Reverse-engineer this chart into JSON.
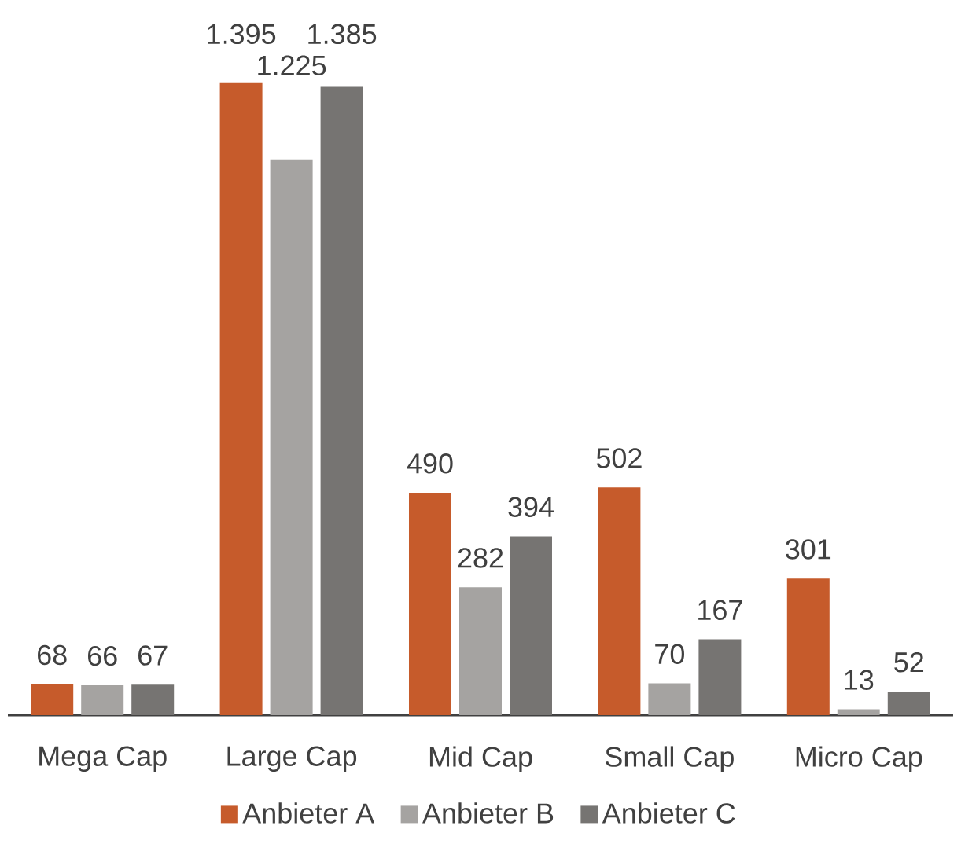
{
  "chart_data": {
    "type": "bar",
    "categories": [
      "Mega Cap",
      "Large Cap",
      "Mid Cap",
      "Small Cap",
      "Micro Cap"
    ],
    "series": [
      {
        "name": "Anbieter A",
        "color": "#c65b2b",
        "values": [
          68,
          1395,
          490,
          502,
          301
        ],
        "value_labels": [
          "68",
          "1.395",
          "490",
          "502",
          "301"
        ]
      },
      {
        "name": "Anbieter B",
        "color": "#a5a3a1",
        "values": [
          66,
          1225,
          282,
          70,
          13
        ],
        "value_labels": [
          "66",
          "1.225",
          "282",
          "70",
          "13"
        ]
      },
      {
        "name": "Anbieter C",
        "color": "#767472",
        "values": [
          67,
          1385,
          394,
          167,
          52
        ],
        "value_labels": [
          "67",
          "1.385",
          "394",
          "167",
          "52"
        ]
      }
    ],
    "legend": "bottom"
  }
}
